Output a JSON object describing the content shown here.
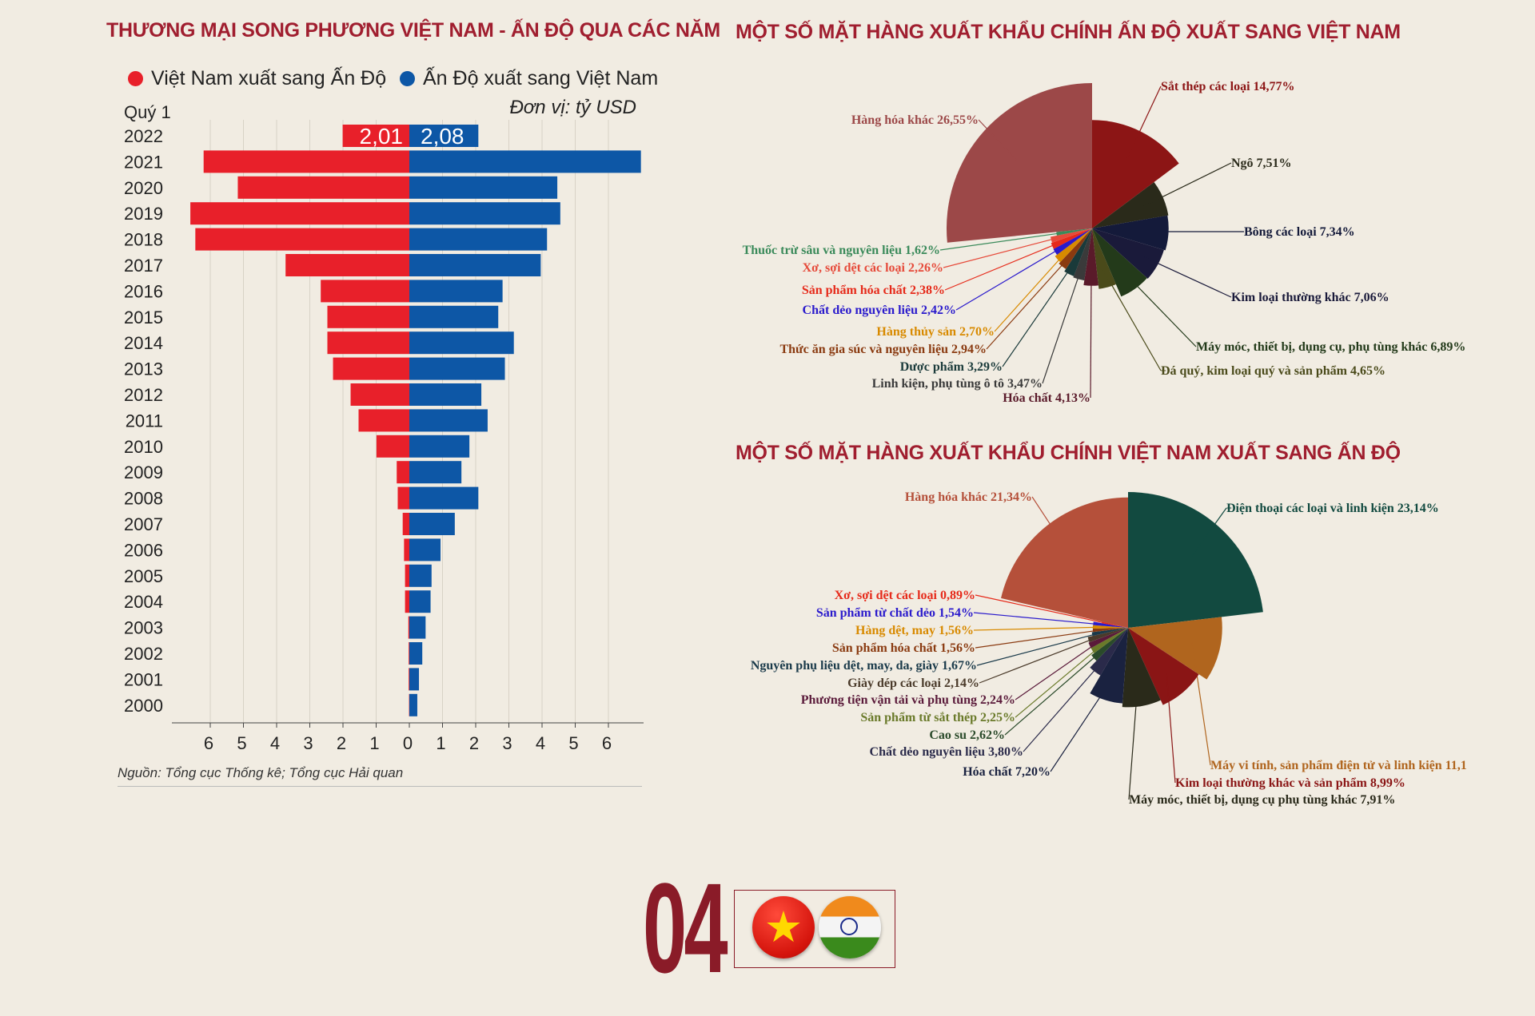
{
  "left_title": "THƯƠNG MẠI SONG PHƯƠNG VIỆT NAM - ẤN ĐỘ QUA CÁC NĂM",
  "legend": {
    "vn": "Việt Nam xuất sang Ấn Độ",
    "in": "Ấn Độ xuất sang Việt Nam"
  },
  "unit": "Đơn vị: tỷ USD",
  "quarter_label": "Quý 1",
  "source": "Nguồn: Tổng cục Thống kê; Tổng cục Hải quan",
  "colors": {
    "vn": "#e8202a",
    "in": "#0d57a6",
    "title": "#a01e2f"
  },
  "chart_data": [
    {
      "type": "bar",
      "orientation": "horizontal-diverging",
      "title": "THƯƠNG MẠI SONG PHƯƠNG VIỆT NAM - ẤN ĐỘ QUA CÁC NĂM",
      "categories": [
        "2022",
        "2021",
        "2020",
        "2019",
        "2018",
        "2017",
        "2016",
        "2015",
        "2014",
        "2013",
        "2012",
        "2011",
        "2010",
        "2009",
        "2008",
        "2007",
        "2006",
        "2005",
        "2004",
        "2003",
        "2002",
        "2001",
        "2000"
      ],
      "series": [
        {
          "name": "Việt Nam xuất sang Ấn Độ",
          "values": [
            2.01,
            6.2,
            5.17,
            6.6,
            6.45,
            3.73,
            2.67,
            2.47,
            2.47,
            2.3,
            1.77,
            1.53,
            0.99,
            0.38,
            0.35,
            0.2,
            0.16,
            0.13,
            0.13,
            0.03,
            0.02,
            0.02,
            0.01
          ]
        },
        {
          "name": "Ấn Độ xuất sang Việt Nam",
          "values": [
            2.08,
            6.98,
            4.46,
            4.55,
            4.15,
            3.96,
            2.81,
            2.68,
            3.15,
            2.88,
            2.17,
            2.36,
            1.81,
            1.57,
            2.08,
            1.37,
            0.94,
            0.67,
            0.64,
            0.49,
            0.39,
            0.29,
            0.24
          ]
        }
      ],
      "data_labels": {
        "vn_2022": "2,01",
        "in_2022": "2,08"
      },
      "xticks": [
        "6",
        "5",
        "4",
        "3",
        "2",
        "1",
        "0",
        "1",
        "2",
        "3",
        "4",
        "5",
        "6"
      ],
      "xlim": [
        -6.7,
        7.2
      ],
      "grid": true,
      "unit": "Đơn vị: tỷ USD"
    },
    {
      "type": "pie",
      "title": "MỘT SỐ MẶT HÀNG XUẤT KHẨU CHÍNH ẤN ĐỘ XUẤT SANG VIỆT NAM",
      "style": "polar-area",
      "slices": [
        {
          "label": "Sắt thép các loại 14,77%",
          "value": 14.77,
          "color": "#8c1515"
        },
        {
          "label": "Ngô 7,51%",
          "value": 7.51,
          "color": "#2a2a1a"
        },
        {
          "label": "Bông các loại 7,34%",
          "value": 7.34,
          "color": "#141a3a"
        },
        {
          "label": "Kim loại thường khác 7,06%",
          "value": 7.06,
          "color": "#1a1a3a"
        },
        {
          "label": "Máy móc, thiết bị, dụng cụ, phụ tùng khác 6,89%",
          "value": 6.89,
          "color": "#233a1a"
        },
        {
          "label": "Đá quý, kim loại quý và sản phẩm 4,65%",
          "value": 4.65,
          "color": "#4a4a1a"
        },
        {
          "label": "Hóa chất 4,13%",
          "value": 4.13,
          "color": "#5a1a2a"
        },
        {
          "label": "Linh kiện, phụ tùng ô tô 3,47%",
          "value": 3.47,
          "color": "#3a3a3a"
        },
        {
          "label": "Dược phẩm 3,29%",
          "value": 3.29,
          "color": "#1a3a3a"
        },
        {
          "label": "Thức ăn gia súc và nguyên liệu 2,94%",
          "value": 2.94,
          "color": "#8a3a10"
        },
        {
          "label": "Hàng thủy sản 2,70%",
          "value": 2.7,
          "color": "#d88a00"
        },
        {
          "label": "Chất dẻo nguyên liệu 2,42%",
          "value": 2.42,
          "color": "#2a1acc"
        },
        {
          "label": "Sản phẩm hóa chất 2,38%",
          "value": 2.38,
          "color": "#e62a1a"
        },
        {
          "label": "Xơ, sợi dệt các loại 2,26%",
          "value": 2.26,
          "color": "#e64a3a"
        },
        {
          "label": "Thuốc trừ sâu và nguyên liệu 1,62%",
          "value": 1.62,
          "color": "#3a8a5a"
        },
        {
          "label": "Hàng hóa khác 26,55%",
          "value": 26.55,
          "color": "#9c4848"
        }
      ]
    },
    {
      "type": "pie",
      "title": "MỘT SỐ MẶT HÀNG XUẤT KHẨU CHÍNH VIỆT NAM XUẤT SANG ẤN ĐỘ",
      "style": "polar-area",
      "slices": [
        {
          "label": "Điện thoại các loại và linh kiện 23,14%",
          "value": 23.14,
          "color": "#124a40"
        },
        {
          "label": "Máy vi tính, sản phẩm điện tử và linh kiện 11,1",
          "value": 11.1,
          "color": "#b0651e"
        },
        {
          "label": "Kim loại thường khác và sản phẩm 8,99%",
          "value": 8.99,
          "color": "#8a1515"
        },
        {
          "label": "Máy móc, thiết bị, dụng cụ phụ tùng khác 7,91%",
          "value": 7.91,
          "color": "#2a2a1a"
        },
        {
          "label": "Hóa chất 7,20%",
          "value": 7.2,
          "color": "#1a2240"
        },
        {
          "label": "Chất dẻo nguyên liệu 3,80%",
          "value": 3.8,
          "color": "#2a2a4a"
        },
        {
          "label": "Cao su 2,62%",
          "value": 2.62,
          "color": "#2a4a2a"
        },
        {
          "label": "Sản phẩm từ sắt thép 2,25%",
          "value": 2.25,
          "color": "#6a7a2a"
        },
        {
          "label": "Phương tiện vận tải và phụ tùng 2,24%",
          "value": 2.24,
          "color": "#5a1a3a"
        },
        {
          "label": "Giày dép các loại 2,14%",
          "value": 2.14,
          "color": "#4a3a2a"
        },
        {
          "label": "Nguyên phụ liệu dệt, may, da, giày 1,67%",
          "value": 1.67,
          "color": "#1a3a4a"
        },
        {
          "label": "Sản phẩm hóa chất 1,56%",
          "value": 1.56,
          "color": "#8a3a10"
        },
        {
          "label": "Hàng dệt, may 1,56%",
          "value": 1.56,
          "color": "#d88a00"
        },
        {
          "label": "Sản phẩm từ chất dẻo 1,54%",
          "value": 1.54,
          "color": "#2a1acc"
        },
        {
          "label": "Xơ, sợi dệt các loại 0,89%",
          "value": 0.89,
          "color": "#e62a1a"
        },
        {
          "label": "Hàng hóa khác 21,34%",
          "value": 21.34,
          "color": "#b5503a"
        }
      ]
    }
  ],
  "badge": {
    "number": "04",
    "flags": [
      "vietnam-flag-icon",
      "india-flag-icon"
    ]
  }
}
